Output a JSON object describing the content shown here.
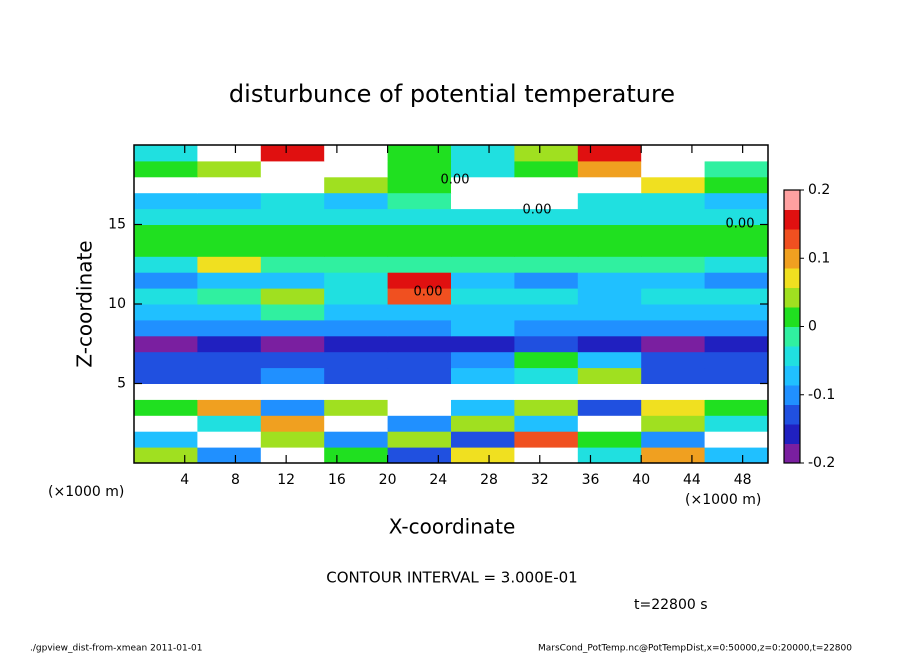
{
  "chart_data": {
    "type": "heatmap",
    "title": "disturbunce of potential temperature",
    "x_label": "X-coordinate",
    "y_label": "Z-coordinate",
    "x_unit": "(×1000 m)",
    "xlim": [
      0,
      50
    ],
    "xticks": [
      4,
      8,
      12,
      16,
      20,
      24,
      28,
      32,
      36,
      40,
      44,
      48
    ],
    "ylim": [
      0,
      20
    ],
    "yticks": [
      5,
      10,
      15
    ],
    "x_edges": [
      0,
      5,
      10,
      15,
      20,
      25,
      30,
      35,
      40,
      45,
      50
    ],
    "y_edges": [
      0,
      1,
      2,
      3,
      4,
      5,
      6,
      7,
      8,
      9,
      10,
      11,
      12,
      13,
      14,
      15,
      16,
      17,
      18,
      19,
      20
    ],
    "z": [
      [
        0.05,
        -0.1,
        0.25,
        0.02,
        -0.12,
        0.08,
        0.25,
        -0.05,
        0.1,
        -0.08
      ],
      [
        -0.08,
        0.25,
        0.03,
        -0.1,
        0.05,
        -0.12,
        0.12,
        0.02,
        -0.1,
        0.25
      ],
      [
        0.25,
        -0.05,
        0.1,
        0.25,
        -0.1,
        0.04,
        -0.08,
        0.25,
        0.03,
        -0.05
      ],
      [
        0.02,
        0.1,
        -0.1,
        0.03,
        0.25,
        -0.06,
        0.05,
        -0.12,
        0.08,
        0.02
      ],
      [
        0.25,
        0.25,
        0.25,
        0.25,
        0.25,
        0.25,
        0.25,
        0.25,
        0.25,
        0.25
      ],
      [
        -0.12,
        -0.12,
        -0.11,
        -0.12,
        -0.13,
        -0.08,
        -0.05,
        0.05,
        -0.12,
        -0.12
      ],
      [
        -0.13,
        -0.12,
        -0.12,
        -0.13,
        -0.12,
        -0.1,
        0.02,
        -0.06,
        -0.12,
        -0.12
      ],
      [
        -0.18,
        -0.17,
        -0.18,
        -0.17,
        -0.16,
        -0.15,
        -0.12,
        -0.17,
        -0.18,
        -0.17
      ],
      [
        -0.1,
        -0.11,
        -0.1,
        -0.09,
        -0.1,
        -0.08,
        -0.1,
        -0.11,
        -0.1,
        -0.1
      ],
      [
        -0.06,
        -0.07,
        -0.02,
        -0.06,
        -0.07,
        -0.06,
        -0.07,
        -0.06,
        -0.07,
        -0.06
      ],
      [
        -0.05,
        -0.02,
        0.05,
        -0.05,
        0.12,
        -0.04,
        -0.05,
        -0.06,
        -0.05,
        -0.05
      ],
      [
        -0.09,
        -0.08,
        -0.08,
        -0.05,
        0.15,
        -0.08,
        -0.09,
        -0.08,
        -0.08,
        -0.09
      ],
      [
        -0.03,
        0.08,
        -0.01,
        -0.01,
        -0.02,
        -0.01,
        -0.02,
        -0.01,
        -0.02,
        -0.03
      ],
      [
        0.01,
        0.0,
        0.0,
        0.01,
        0.0,
        0.0,
        0.01,
        0.0,
        0.0,
        0.01
      ],
      [
        0.02,
        0.01,
        0.01,
        0.0,
        0.0,
        0.01,
        0.0,
        0.0,
        0.01,
        0.02
      ],
      [
        -0.04,
        -0.04,
        -0.03,
        -0.05,
        -0.04,
        -0.03,
        -0.04,
        -0.04,
        -0.05,
        -0.04
      ],
      [
        -0.06,
        -0.08,
        -0.05,
        -0.06,
        -0.02,
        0.25,
        0.25,
        -0.05,
        -0.03,
        -0.06
      ],
      [
        0.25,
        0.25,
        0.25,
        0.05,
        0.0,
        0.25,
        0.25,
        0.25,
        0.08,
        0.0
      ],
      [
        0.0,
        0.05,
        0.25,
        0.25,
        0.0,
        -0.03,
        0.02,
        0.1,
        0.25,
        -0.02
      ],
      [
        -0.05,
        0.25,
        0.15,
        0.25,
        0.02,
        -0.05,
        0.03,
        0.15,
        0.25,
        0.25
      ]
    ],
    "colorbar": {
      "lim": [
        -0.2,
        0.2
      ],
      "ticks": [
        0.2,
        0.1,
        0,
        -0.1,
        -0.2
      ],
      "colors": [
        "#7a1fa0",
        "#2020c0",
        "#2050e0",
        "#2090ff",
        "#20c0ff",
        "#20e0e0",
        "#30f0a0",
        "#20e020",
        "#a0e020",
        "#f0e020",
        "#f0a020",
        "#f05020",
        "#e01010",
        "#ffa0a0"
      ],
      "over_color": "#ffffff"
    },
    "contour_labels": [
      "0.00",
      "0.00",
      "0.00",
      "0.00"
    ],
    "contour_interval": "CONTOUR INTERVAL = 3.000E-01",
    "time_label": "t=22800 s"
  },
  "footer": {
    "left": "./gpview_dist-from-xmean  2011-01-01",
    "right": "MarsCond_PotTemp.nc@PotTempDist,x=0:50000,z=0:20000,t=22800"
  }
}
